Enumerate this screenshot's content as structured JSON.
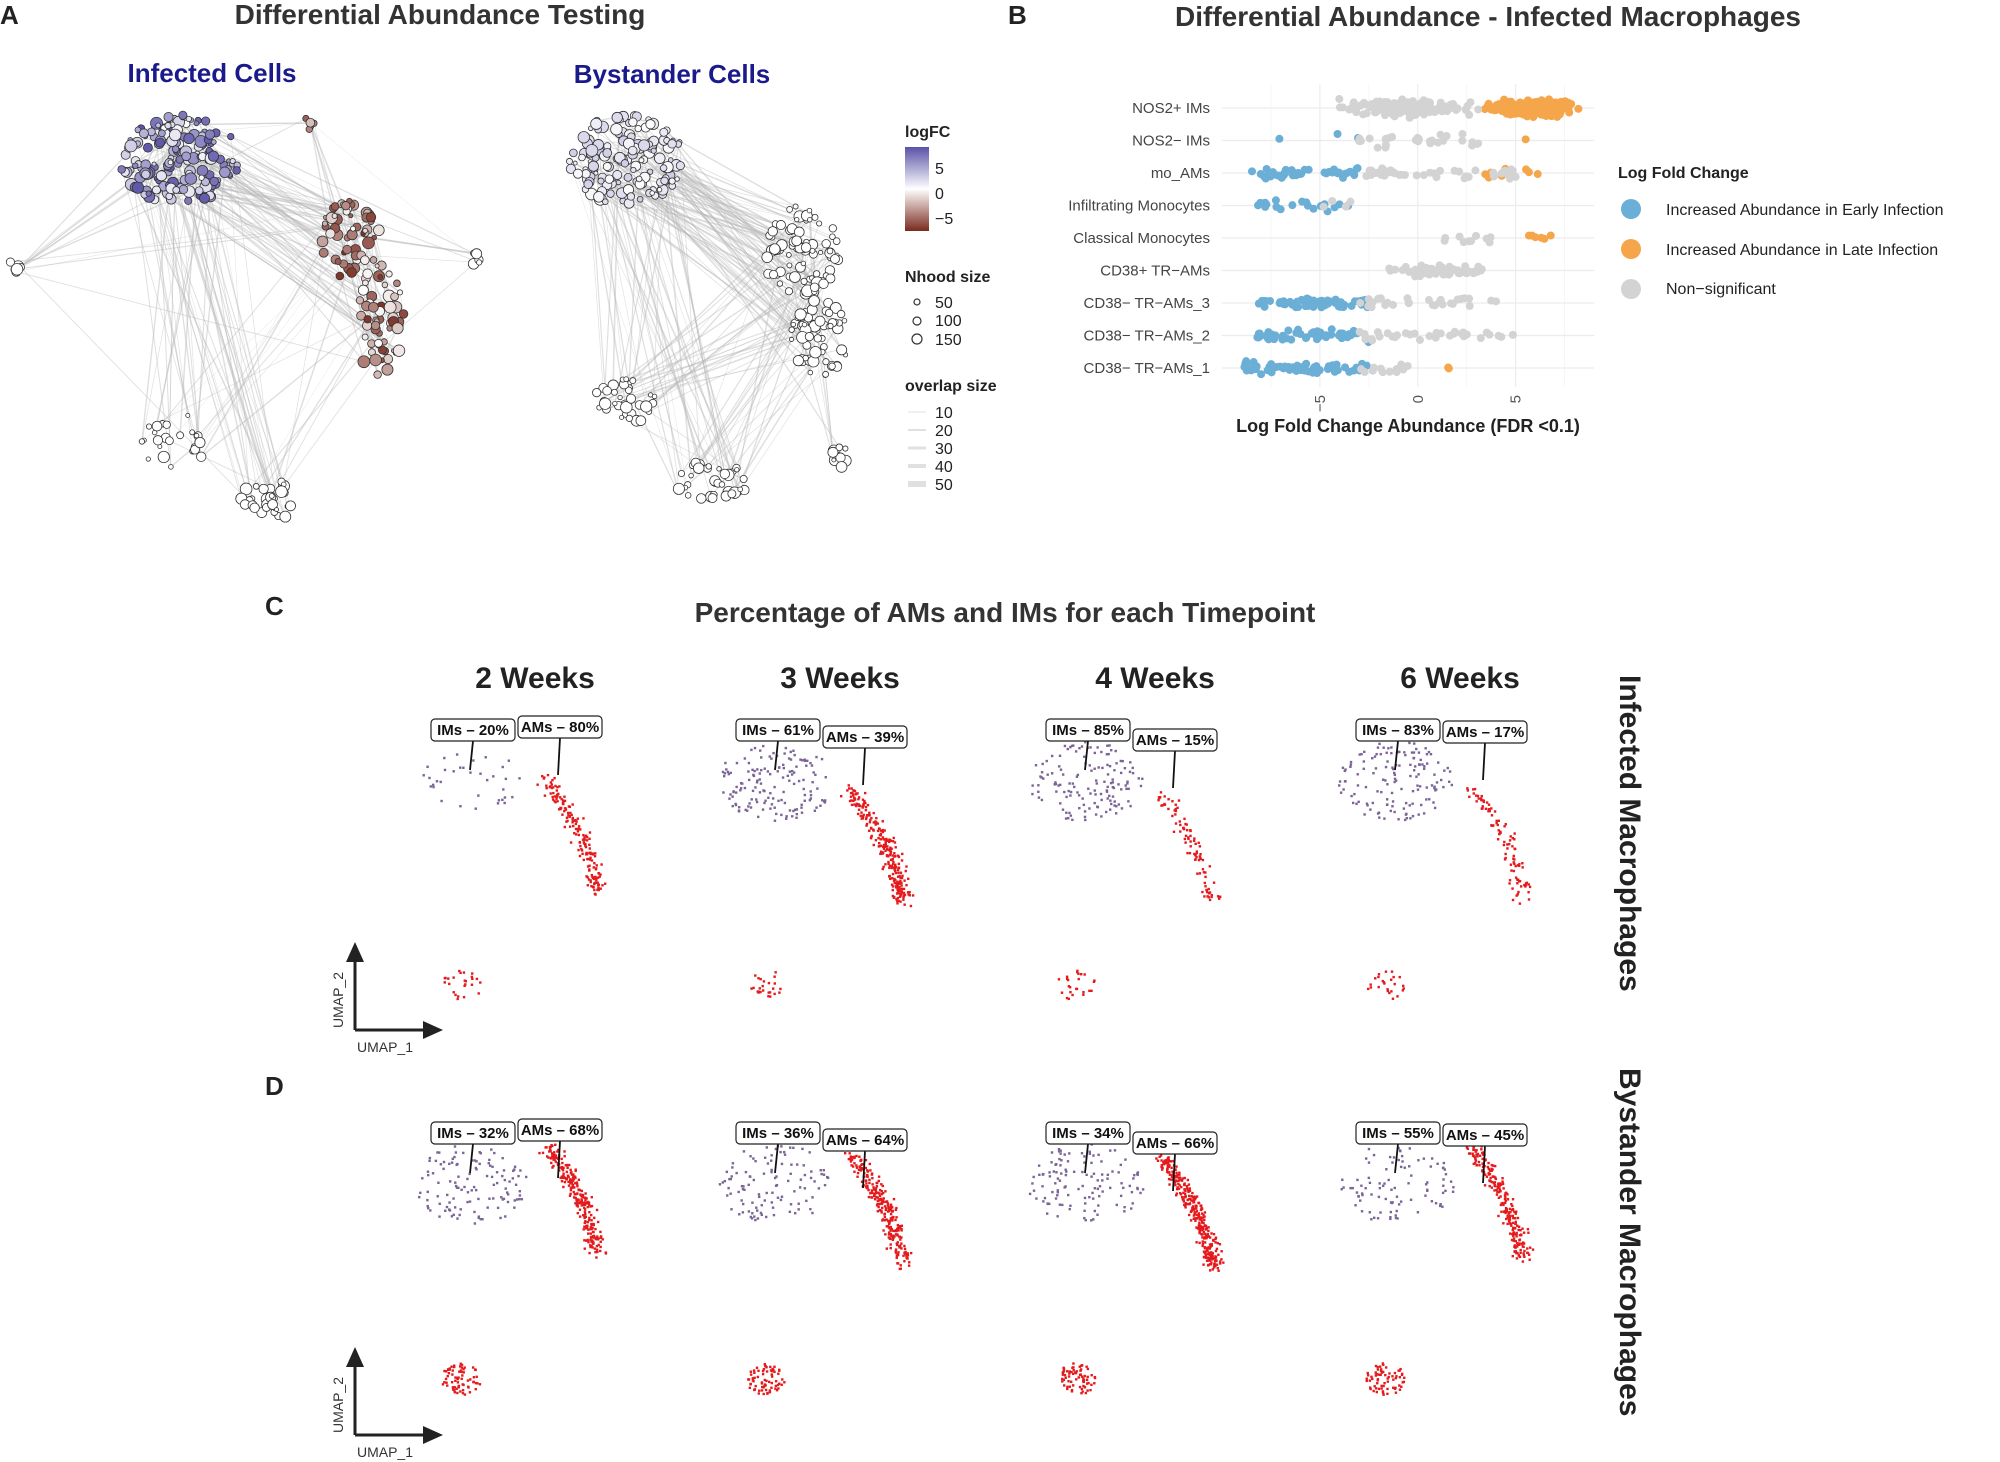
{
  "panel_letters": {
    "a": "A",
    "b": "B",
    "c": "C",
    "d": "D"
  },
  "colors": {
    "infected_title": "#1a1a8c",
    "early": "#6baed6",
    "late": "#f5a54a",
    "nonsig": "#d3d3d3",
    "im": "#7b6496",
    "am": "#e41a1c",
    "logfc_high": "#5a52a8",
    "logfc_low": "#7a2a1e",
    "edge": "#b8b8b8"
  },
  "panel_a": {
    "title": "Differential Abundance Testing",
    "infected_label": "Infected Cells",
    "bystander_label": "Bystander Cells",
    "legend": {
      "logfc_title": "logFC",
      "logfc_ticks": [
        "5",
        "0",
        "−5"
      ],
      "nhood_title": "Nhood size",
      "nhood_sizes": [
        "50",
        "100",
        "150"
      ],
      "overlap_title": "overlap size",
      "overlap_sizes": [
        "10",
        "20",
        "30",
        "40",
        "50"
      ]
    }
  },
  "chart_data": [
    {
      "type": "scatter",
      "title": "Differential Abundance - Infected Macrophages",
      "xlabel": "Log Fold Change Abundance (FDR <0.1)",
      "ylabel": "",
      "xlim": [
        -10,
        9
      ],
      "xticks": [
        -5,
        0,
        5
      ],
      "xtick_labels": [
        "−5",
        "0",
        "5"
      ],
      "grid": true,
      "categories": [
        "NOS2+ IMs",
        "NOS2− IMs",
        "mo_AMs",
        "Infiltrating Monocytes",
        "Classical Monocytes",
        "CD38+ TR−AMs",
        "CD38− TR−AMs_3",
        "CD38− TR−AMs_2",
        "CD38− TR−AMs_1"
      ],
      "legend_title": "Log Fold Change",
      "legend_position": "right",
      "series": [
        {
          "name": "Increased Abundance in Early Infection",
          "color": "early",
          "ranges": [
            null,
            [
              -7.5,
              -2.5
            ],
            [
              -8.5,
              -2.8
            ],
            [
              -8.5,
              -3.5
            ],
            null,
            null,
            [
              -8.5,
              -2.5
            ],
            [
              -8.5,
              -2.5
            ],
            [
              -9,
              -2.5
            ]
          ],
          "counts": [
            0,
            3,
            40,
            20,
            0,
            0,
            60,
            55,
            70
          ]
        },
        {
          "name": "Increased Abundance in Late Infection",
          "color": "late",
          "ranges": [
            [
              3,
              8.5
            ],
            [
              5.5,
              5.6
            ],
            [
              3,
              6.2
            ],
            null,
            [
              5.5,
              6.8
            ],
            null,
            null,
            null,
            [
              1.2,
              1.8
            ]
          ],
          "counts": [
            220,
            1,
            8,
            0,
            6,
            0,
            0,
            0,
            2
          ]
        },
        {
          "name": "Non−significant",
          "color": "nonsig",
          "ranges": [
            [
              -5,
              3.5
            ],
            [
              -3,
              3.5
            ],
            [
              -3,
              5
            ],
            [
              -5.5,
              -3
            ],
            [
              1,
              4
            ],
            [
              -1.5,
              3.5
            ],
            [
              -3,
              4
            ],
            [
              -3,
              5
            ],
            [
              -3,
              -0.5
            ]
          ],
          "counts": [
            160,
            30,
            45,
            4,
            10,
            55,
            30,
            35,
            12
          ]
        }
      ]
    },
    {
      "type": "scatter",
      "title": "Percentage of AMs and IMs for each Timepoint",
      "xlabel": "UMAP_1",
      "ylabel": "UMAP_2",
      "timepoints": [
        "2 Weeks",
        "3 Weeks",
        "4 Weeks",
        "6 Weeks"
      ],
      "rows": [
        {
          "name": "Infected Macrophages",
          "labels": [
            {
              "im": "IMs – 20%",
              "am": "AMs – 80%",
              "im_pct": 20,
              "am_pct": 80
            },
            {
              "im": "IMs – 61%",
              "am": "AMs – 39%",
              "im_pct": 61,
              "am_pct": 39
            },
            {
              "im": "IMs – 85%",
              "am": "AMs – 15%",
              "im_pct": 85,
              "am_pct": 15
            },
            {
              "im": "IMs – 83%",
              "am": "AMs – 17%",
              "im_pct": 83,
              "am_pct": 17
            }
          ]
        },
        {
          "name": "Bystander Macrophages",
          "labels": [
            {
              "im": "IMs – 32%",
              "am": "AMs – 68%",
              "im_pct": 32,
              "am_pct": 68
            },
            {
              "im": "IMs – 36%",
              "am": "AMs – 64%",
              "im_pct": 36,
              "am_pct": 64
            },
            {
              "im": "IMs – 34%",
              "am": "AMs – 66%",
              "im_pct": 34,
              "am_pct": 66
            },
            {
              "im": "IMs – 55%",
              "am": "AMs – 45%",
              "im_pct": 55,
              "am_pct": 45
            }
          ]
        }
      ]
    }
  ]
}
